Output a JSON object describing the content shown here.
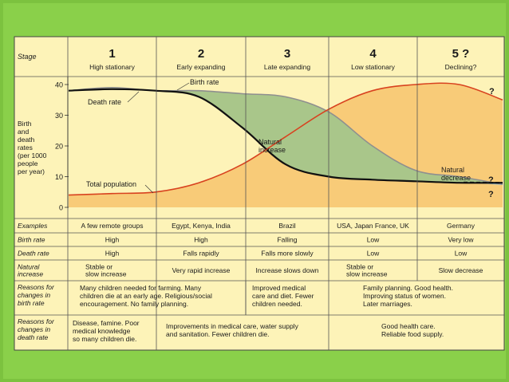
{
  "stages": [
    {
      "num": "1",
      "name": "High stationary"
    },
    {
      "num": "2",
      "name": "Early expanding"
    },
    {
      "num": "3",
      "name": "Late expanding"
    },
    {
      "num": "4",
      "name": "Low stationary"
    },
    {
      "num": "5 ?",
      "name": "Declining?"
    }
  ],
  "labels": {
    "stage": "Stage",
    "y_axis": [
      "Birth",
      "and",
      "death",
      "rates",
      "(per 1000",
      "people",
      "per year)"
    ],
    "birth_rate": "Birth rate",
    "death_rate": "Death rate",
    "natural_increase": [
      "Natural",
      "increase"
    ],
    "natural_decrease": [
      "Natural",
      "decrease"
    ],
    "total_population": "Total population",
    "question": "?"
  },
  "chart_data": {
    "type": "line",
    "title": "",
    "xlabel": "Stage",
    "ylabel": "Birth and death rates (per 1000 people per year)",
    "ylim": [
      0,
      40
    ],
    "yticks": [
      "40",
      "30",
      "20",
      "10",
      "0"
    ],
    "x": [
      0,
      0.5,
      1,
      1.5,
      2,
      2.5,
      3,
      3.5,
      4,
      4.5,
      5
    ],
    "series": [
      {
        "name": "Birth rate",
        "values": [
          38,
          39,
          38,
          38,
          37,
          36,
          31,
          20,
          12,
          10,
          7.5
        ]
      },
      {
        "name": "Death rate",
        "values": [
          38,
          38.5,
          38,
          36,
          26,
          14,
          10,
          9,
          8.5,
          8,
          8
        ]
      },
      {
        "name": "Total population",
        "values": [
          4,
          4.5,
          5,
          8,
          14,
          23,
          32,
          38,
          40,
          40,
          35
        ]
      }
    ]
  },
  "rows": [
    {
      "label": "Examples",
      "cells": [
        "A few remote groups",
        "Egypt, Kenya, India",
        "Brazil",
        "USA, Japan France, UK",
        "Germany"
      ]
    },
    {
      "label": "Birth rate",
      "cells": [
        "High",
        "High",
        "Falling",
        "Low",
        "Very low"
      ]
    },
    {
      "label": "Death rate",
      "cells": [
        "High",
        "Falls rapidly",
        "Falls more slowly",
        "Low",
        "Low"
      ]
    },
    {
      "label": [
        "Natural",
        "increase"
      ],
      "cells": [
        [
          "Stable or",
          "slow increase"
        ],
        [
          "Very rapid increase"
        ],
        [
          "Increase slows down"
        ],
        [
          "Stable or",
          "slow increase"
        ],
        [
          "Slow decrease"
        ]
      ]
    }
  ],
  "reasons_birth": {
    "label": [
      "Reasons for",
      "changes in",
      "birth rate"
    ],
    "c1": [
      "Many children needed for farming. Many",
      "children die at an early age. Religious/social",
      "encouragement. No family planning."
    ],
    "c2": [
      "Improved medical",
      "care and diet. Fewer",
      "children needed."
    ],
    "c3": [
      "Family planning. Good health.",
      "Improving status of women.",
      "Later marriages."
    ]
  },
  "reasons_death": {
    "label": [
      "Reasons for",
      "changes in",
      "death rate"
    ],
    "c1": [
      "Disease, famine. Poor",
      "medical knowledge",
      "so many children die."
    ],
    "c2": [
      "Improvements in medical care, water supply",
      "and sanitation. Fewer children die."
    ],
    "c3": [
      "Good health care.",
      "Reliable food supply."
    ]
  },
  "colors": {
    "background": "#8ad04a",
    "panel": "#fdf3b8",
    "population_fill": "#f8cb78",
    "natural_increase_fill": "#a9c68a",
    "natural_decrease_fill": "#8fc4e4",
    "population_line": "#d8421f",
    "birth_line": "#8f8f8f",
    "death_line": "#111111"
  }
}
